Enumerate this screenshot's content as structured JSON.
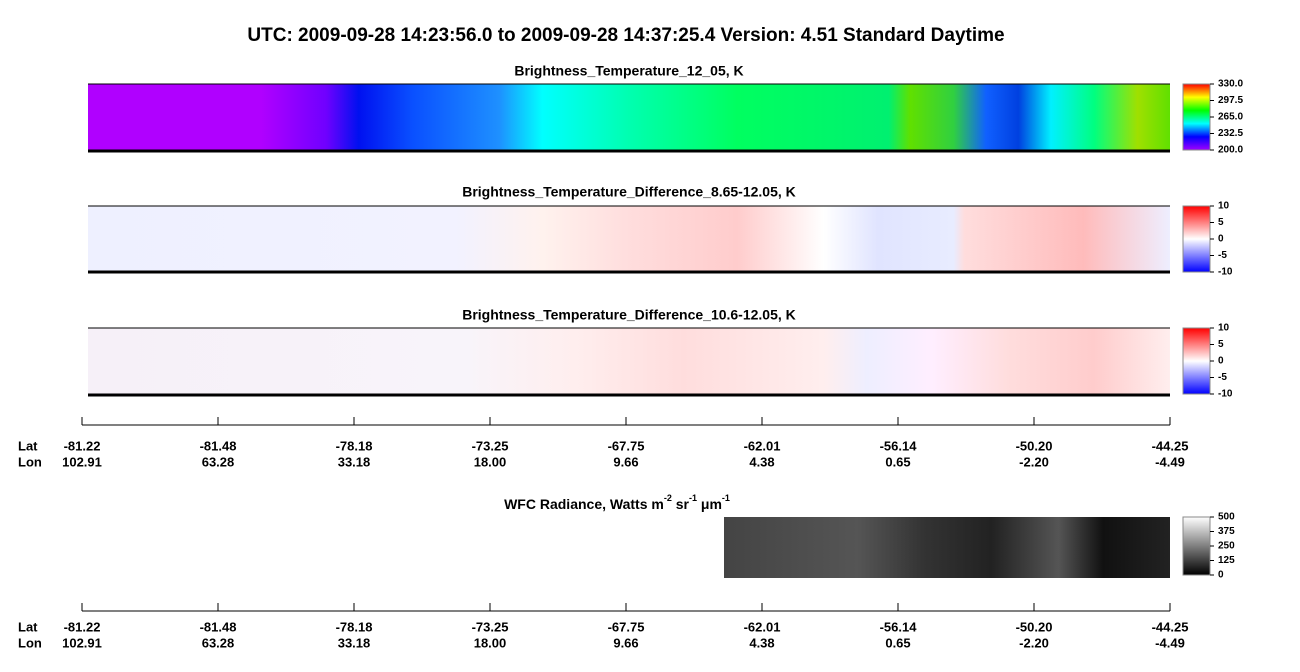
{
  "title": "UTC:  2009-09-28   14:23:56.0  to  2009-09-28   14:37:25.4    Version: 4.51  Standard Daytime",
  "panels": [
    {
      "title": "Brightness_Temperature_12_05, K",
      "colorbar": {
        "lim": [
          200,
          330
        ],
        "ticks": [
          {
            "value": 200,
            "label": "200.0"
          },
          {
            "value": 232.5,
            "label": "232.5"
          },
          {
            "value": 265,
            "label": "265.0"
          },
          {
            "value": 297.5,
            "label": "297.5"
          },
          {
            "value": 330,
            "label": "330.0"
          }
        ]
      }
    },
    {
      "title": "Brightness_Temperature_Difference_8.65-12.05, K",
      "colorbar": {
        "lim": [
          -10,
          10
        ],
        "ticks": [
          -10,
          -5,
          0,
          5,
          10
        ]
      }
    },
    {
      "title": "Brightness_Temperature_Difference_10.6-12.05, K",
      "colorbar": {
        "lim": [
          -10,
          10
        ],
        "ticks": [
          -10,
          -5,
          0,
          5,
          10
        ]
      }
    },
    {
      "title": {
        "text": "WFC Radiance, Watts m",
        "sup1": "-2",
        "mid1": " sr",
        "sup2": "-1",
        "mid2": " μm",
        "sup3": "-1"
      },
      "colorbar": {
        "lim": [
          0,
          500
        ],
        "ticks": [
          0,
          125,
          250,
          375,
          500
        ]
      }
    }
  ],
  "axis": {
    "lat_label": "Lat",
    "lon_label": "Lon",
    "lat": [
      "-81.22",
      "-81.48",
      "-78.18",
      "-73.25",
      "-67.75",
      "-62.01",
      "-56.14",
      "-50.20",
      "-44.25"
    ],
    "lon": [
      "102.91",
      "63.28",
      "33.18",
      "18.00",
      "9.66",
      "4.38",
      "0.65",
      "-2.20",
      "-4.49"
    ]
  }
}
